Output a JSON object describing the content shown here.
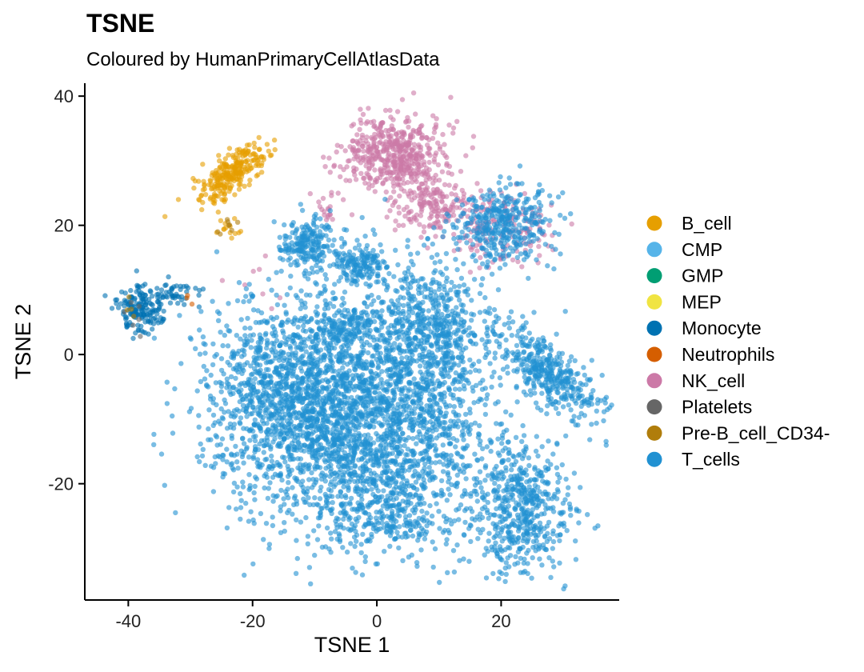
{
  "chart_data": {
    "type": "scatter",
    "title": "TSNE",
    "subtitle": "Coloured by HumanPrimaryCellAtlasData",
    "xlabel": "TSNE 1",
    "ylabel": "TSNE 2",
    "xlim": [
      -47,
      39
    ],
    "ylim": [
      -38,
      42
    ],
    "x_ticks": [
      -40,
      -20,
      0,
      20
    ],
    "y_ticks": [
      -20,
      0,
      20,
      40
    ],
    "grid": false,
    "legend_position": "right",
    "series": [
      {
        "name": "B_cell",
        "color": "#E69F00",
        "clusters": [
          {
            "cx": -23,
            "cy": 28,
            "sx": 3.2,
            "sy": 1.4,
            "angle": 40,
            "n": 260
          },
          {
            "cx": -24,
            "cy": 19.5,
            "sx": 1.2,
            "sy": 0.8,
            "angle": 0,
            "n": 12
          }
        ]
      },
      {
        "name": "CMP",
        "color": "#56B4E9",
        "clusters": []
      },
      {
        "name": "GMP",
        "color": "#009E73",
        "clusters": []
      },
      {
        "name": "MEP",
        "color": "#F0E442",
        "clusters": []
      },
      {
        "name": "Monocyte",
        "color": "#0072B2",
        "clusters": [
          {
            "cx": -38,
            "cy": 7,
            "sx": 1.8,
            "sy": 1.8,
            "angle": 0,
            "n": 170
          },
          {
            "cx": -32,
            "cy": 9.5,
            "sx": 2.0,
            "sy": 0.9,
            "angle": 0,
            "n": 40
          }
        ]
      },
      {
        "name": "Neutrophils",
        "color": "#D55E00",
        "clusters": [
          {
            "cx": -30,
            "cy": 8.5,
            "sx": 0.6,
            "sy": 0.4,
            "angle": 0,
            "n": 3
          }
        ]
      },
      {
        "name": "NK_cell",
        "color": "#CC79A7",
        "clusters": [
          {
            "cx": 3,
            "cy": 31,
            "sx": 4.0,
            "sy": 3.0,
            "angle": 0,
            "n": 520
          },
          {
            "cx": 9,
            "cy": 23,
            "sx": 3.0,
            "sy": 2.5,
            "angle": 0,
            "n": 160
          },
          {
            "cx": 20,
            "cy": 20,
            "sx": 4.0,
            "sy": 3.0,
            "angle": 0,
            "n": 160
          },
          {
            "cx": -8,
            "cy": 23,
            "sx": 1.2,
            "sy": 1.5,
            "angle": 0,
            "n": 20
          },
          {
            "cx": -20,
            "cy": 12,
            "sx": 2.5,
            "sy": 3.0,
            "angle": 0,
            "n": 8
          }
        ]
      },
      {
        "name": "Platelets",
        "color": "#666666",
        "clusters": [
          {
            "cx": -40,
            "cy": 6,
            "sx": 1.5,
            "sy": 1.5,
            "angle": 0,
            "n": 6
          }
        ]
      },
      {
        "name": "Pre-B_cell_CD34-",
        "color": "#B07D0B",
        "clusters": [
          {
            "cx": -24,
            "cy": 19.5,
            "sx": 1.5,
            "sy": 1.0,
            "angle": 0,
            "n": 8
          },
          {
            "cx": -40,
            "cy": 7.5,
            "sx": 1.0,
            "sy": 1.0,
            "angle": 0,
            "n": 4
          }
        ]
      },
      {
        "name": "T_cells",
        "color": "#2191D2",
        "clusters": [
          {
            "cx": -2,
            "cy": -10,
            "sx": 11.0,
            "sy": 9.0,
            "angle": 0,
            "n": 2600
          },
          {
            "cx": -15,
            "cy": -5,
            "sx": 6.0,
            "sy": 7.0,
            "angle": 0,
            "n": 700
          },
          {
            "cx": 8,
            "cy": 4,
            "sx": 4.5,
            "sy": 5.0,
            "angle": 0,
            "n": 500
          },
          {
            "cx": 23,
            "cy": -24,
            "sx": 4.0,
            "sy": 5.0,
            "angle": 0,
            "n": 500
          },
          {
            "cx": 28,
            "cy": -3,
            "sx": 5.5,
            "sy": 2.0,
            "angle": -40,
            "n": 380
          },
          {
            "cx": -12,
            "cy": 17,
            "sx": 2.5,
            "sy": 2.0,
            "angle": 0,
            "n": 200
          },
          {
            "cx": -3,
            "cy": 14,
            "sx": 2.0,
            "sy": 1.8,
            "angle": 0,
            "n": 160
          },
          {
            "cx": 20,
            "cy": 20,
            "sx": 4.0,
            "sy": 3.0,
            "angle": 0,
            "n": 380
          },
          {
            "cx": -5,
            "cy": 4,
            "sx": 3.0,
            "sy": 2.0,
            "angle": 0,
            "n": 150
          },
          {
            "cx": 2,
            "cy": -25,
            "sx": 4.0,
            "sy": 3.0,
            "angle": 0,
            "n": 200
          }
        ]
      }
    ]
  }
}
